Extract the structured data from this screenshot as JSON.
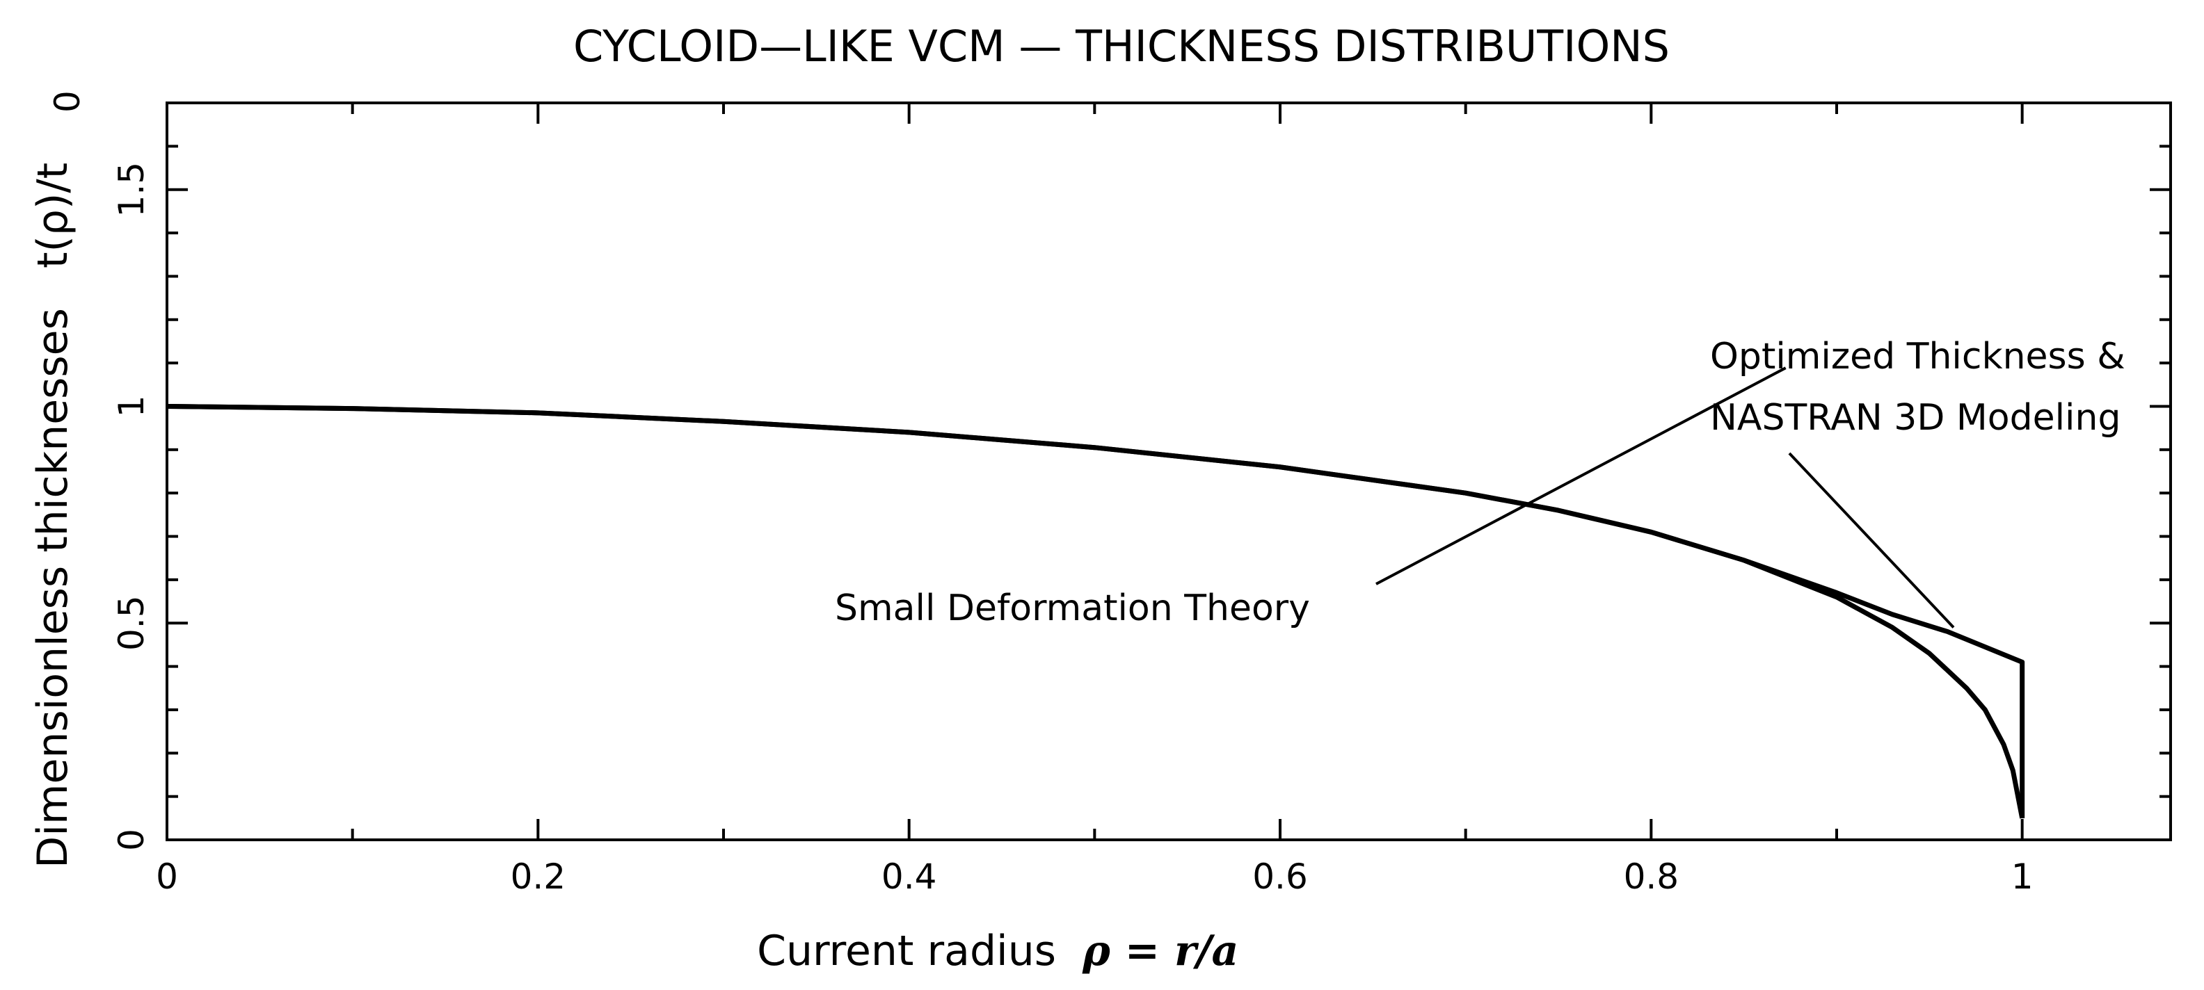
{
  "chart_data": {
    "type": "line",
    "title": "CYCLOID—LIKE VCM — THICKNESS DISTRIBUTIONS",
    "xlabel": "Current radius",
    "xlabel_math": "ρ = r/a",
    "ylabel": "Dimensionless thicknesses",
    "ylabel_math": "t(ρ)/t",
    "ylabel_sub": "0",
    "xlim": [
      0,
      1.08
    ],
    "ylim": [
      0,
      1.7
    ],
    "x_ticks": [
      0,
      0.2,
      0.4,
      0.6,
      0.8,
      1
    ],
    "x_tick_labels": [
      "0",
      "0.2",
      "0.4",
      "0.6",
      "0.8",
      "1"
    ],
    "y_ticks": [
      0,
      0.5,
      1,
      1.5
    ],
    "y_tick_labels": [
      "0",
      "0.5",
      "1",
      "1.5"
    ],
    "series": [
      {
        "name": "Small Deformation Theory",
        "x": [
          0,
          0.1,
          0.2,
          0.3,
          0.4,
          0.5,
          0.6,
          0.7,
          0.75,
          0.8,
          0.85,
          0.9,
          0.93,
          0.95,
          0.97,
          0.98,
          0.99,
          0.995,
          1.0
        ],
        "y": [
          1.0,
          0.995,
          0.985,
          0.965,
          0.94,
          0.905,
          0.86,
          0.8,
          0.76,
          0.71,
          0.645,
          0.56,
          0.49,
          0.43,
          0.35,
          0.3,
          0.22,
          0.16,
          0.05
        ]
      },
      {
        "name": "Optimized Thickness & NASTRAN 3D Modeling",
        "x": [
          0,
          0.1,
          0.2,
          0.3,
          0.4,
          0.5,
          0.6,
          0.7,
          0.75,
          0.8,
          0.85,
          0.9,
          0.93,
          0.96,
          1.0,
          1.0
        ],
        "y": [
          1.0,
          0.995,
          0.985,
          0.965,
          0.94,
          0.905,
          0.86,
          0.8,
          0.76,
          0.71,
          0.645,
          0.57,
          0.52,
          0.48,
          0.41,
          0.05
        ]
      }
    ],
    "annotations": [
      {
        "text": "Small Deformation Theory",
        "series": 0
      },
      {
        "text_line1": "Optimized Thickness &",
        "text_line2": "NASTRAN 3D Modeling",
        "series": 1
      }
    ]
  }
}
